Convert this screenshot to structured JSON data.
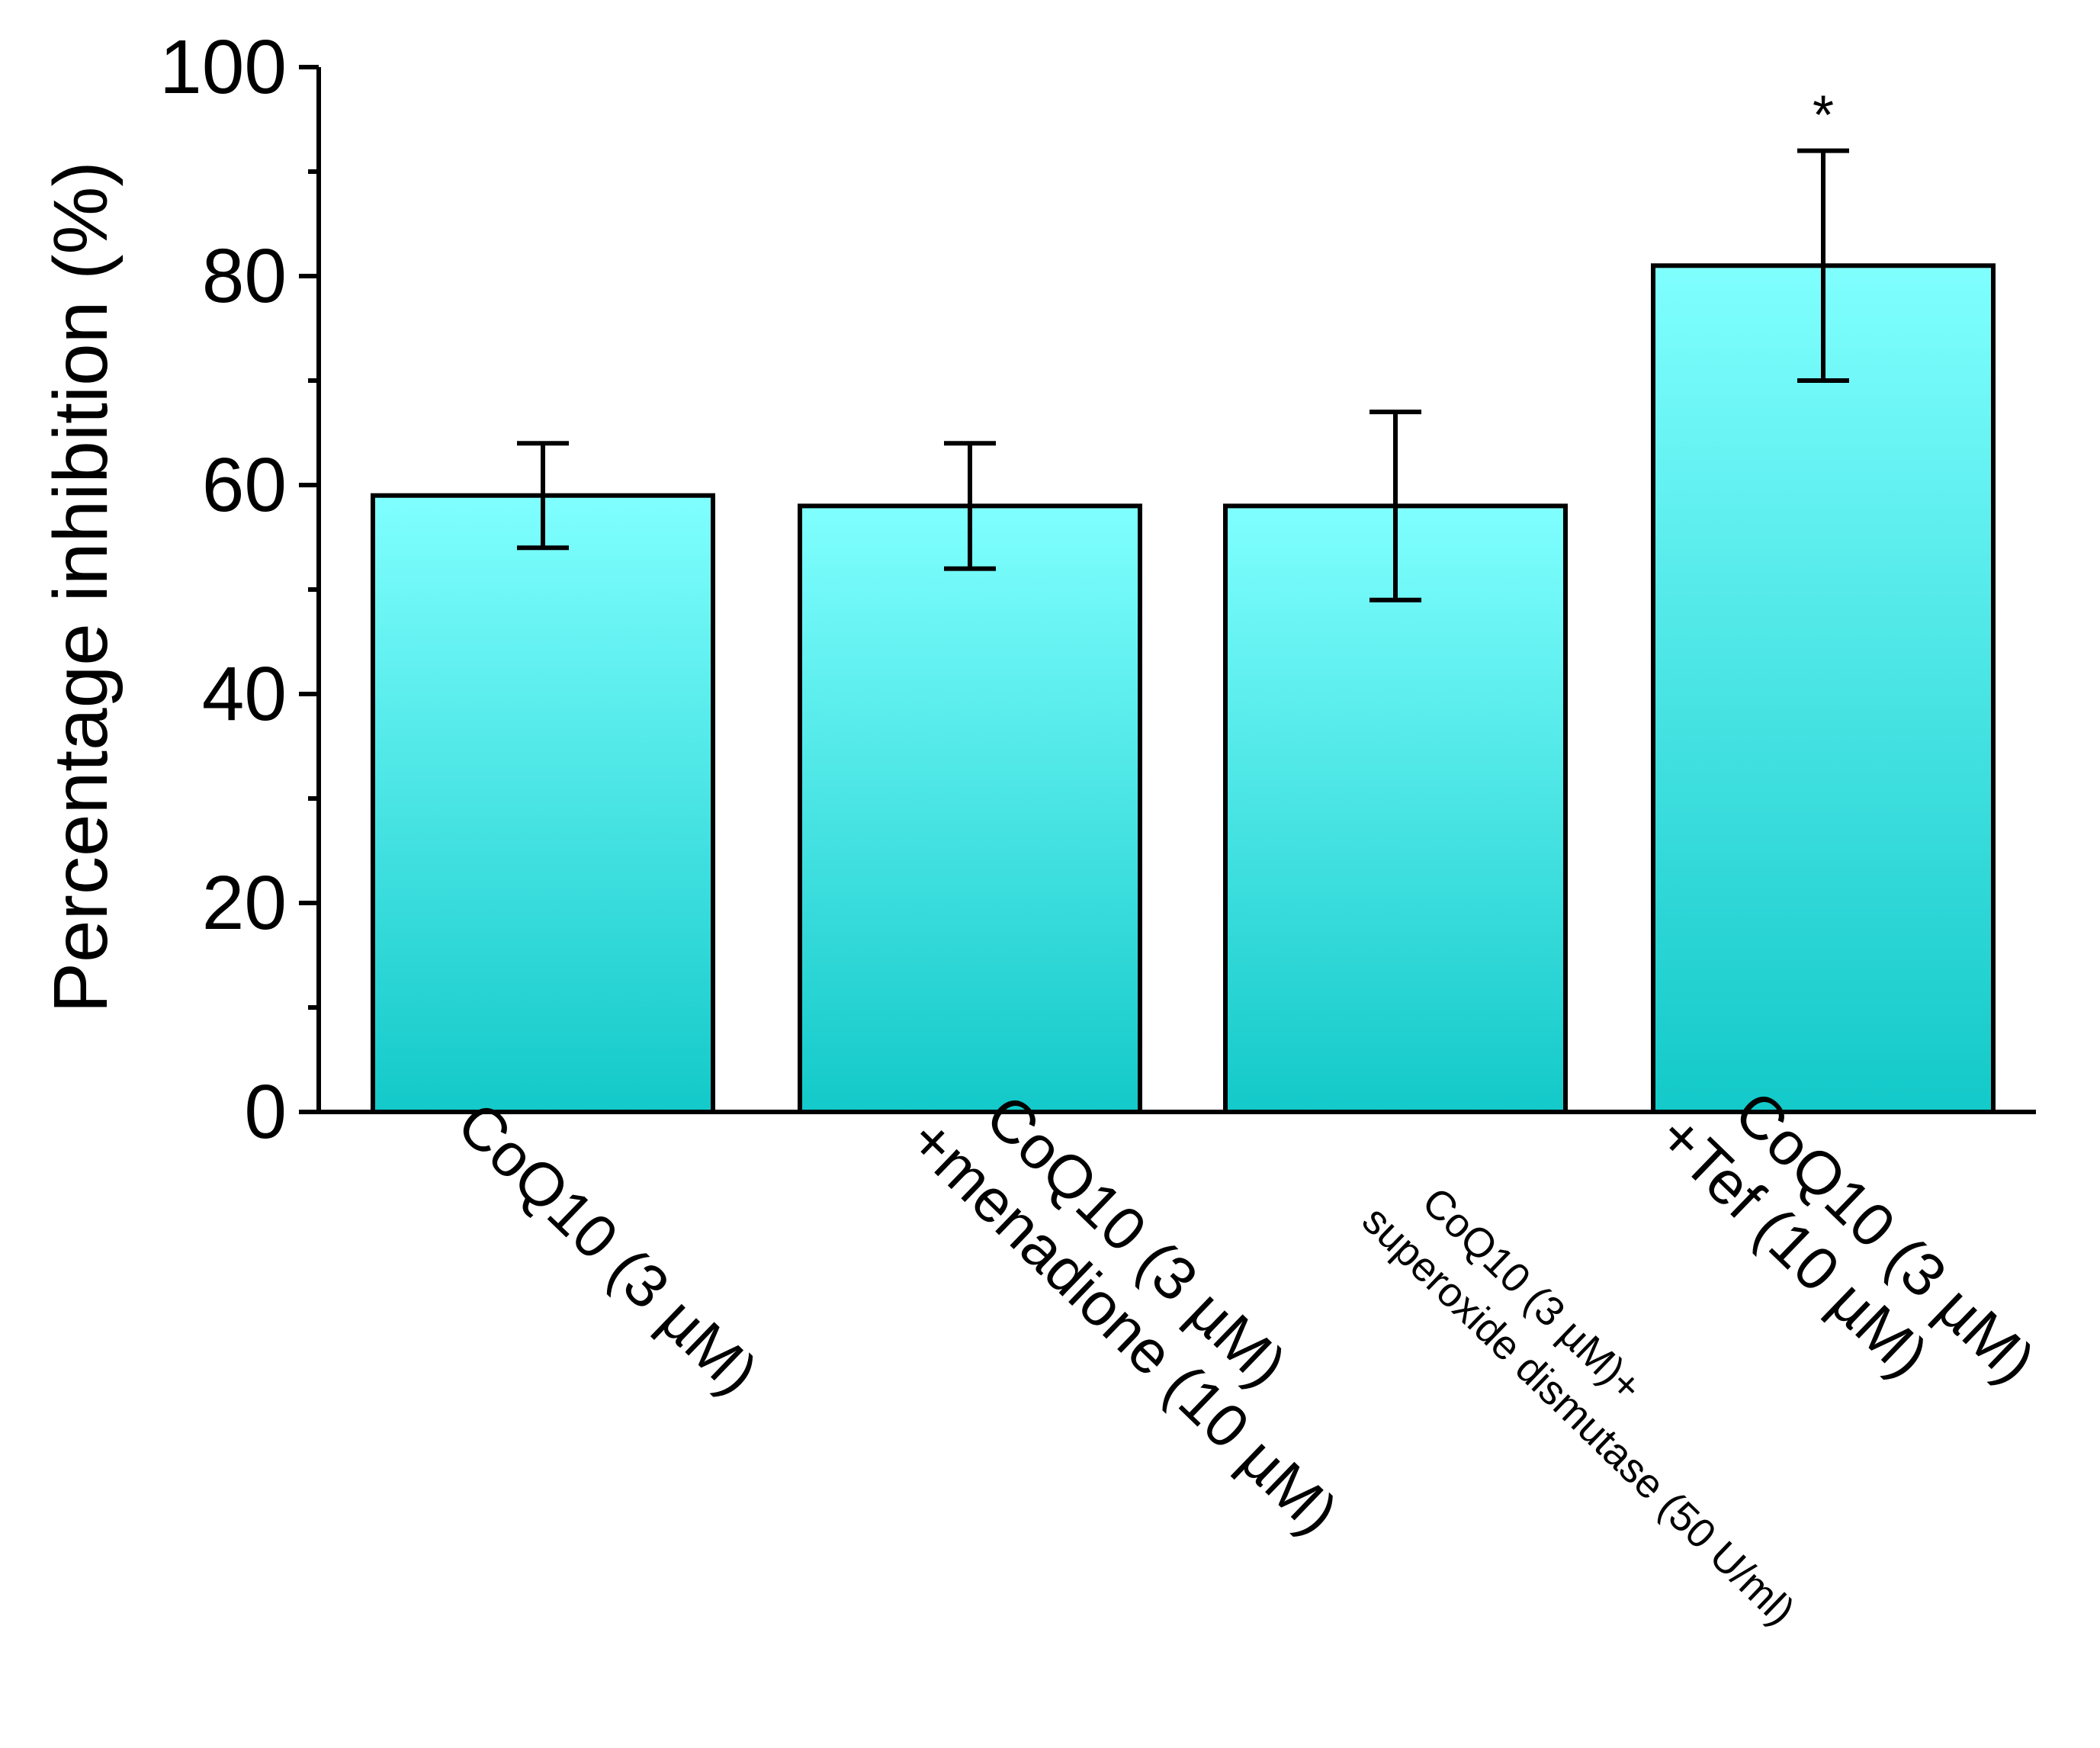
{
  "chart_data": {
    "type": "bar",
    "title": "",
    "xlabel": "",
    "ylabel": "Percentage inhibition (%)",
    "ylim": [
      0,
      100
    ],
    "yticks": [
      0,
      20,
      40,
      60,
      80,
      100
    ],
    "y_minor_step": 10,
    "categories": [
      {
        "lines": [
          "CoQ10 (3 µM)"
        ]
      },
      {
        "lines": [
          "CoQ10 (3 µM)",
          "+menadione (10 µM)"
        ]
      },
      {
        "lines": [
          "CoQ10 (3 µM)+",
          "superoxide dismutase  (50 U/ml)"
        ]
      },
      {
        "lines": [
          "CoQ10 (3 µM)",
          "+Tef (10 µM)"
        ]
      }
    ],
    "values": [
      59,
      58,
      58,
      81
    ],
    "error_upper": [
      64,
      64,
      67,
      92
    ],
    "error_lower": [
      54,
      52,
      49,
      70
    ],
    "annotations": [
      "",
      "",
      "",
      "*"
    ],
    "bar_gradient": {
      "top": "#80ffff",
      "bottom": "#13c9c9"
    },
    "bar_edge_color": "#000000"
  }
}
